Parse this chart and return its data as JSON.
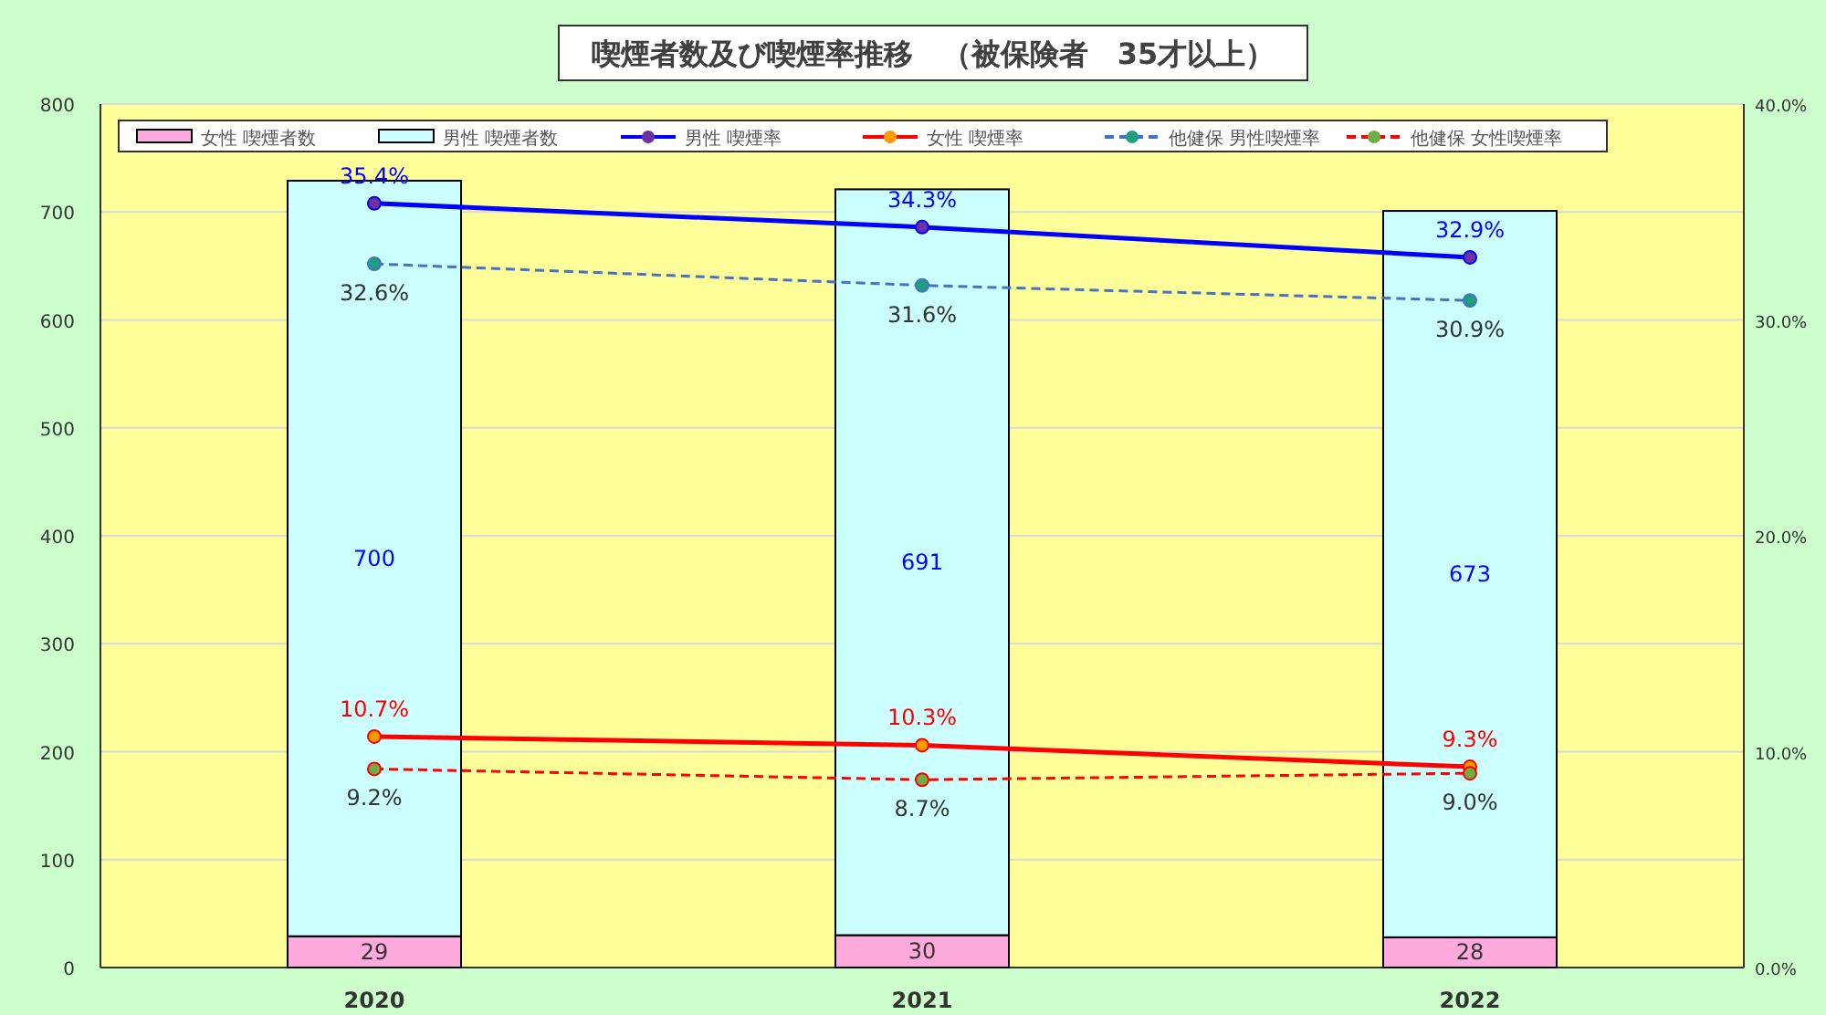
{
  "chart_data": {
    "type": "bar",
    "title": "喫煙者数及び喫煙率推移　（被保険者　35才以上）",
    "categories": [
      "2020",
      "2021",
      "2022"
    ],
    "stacked": true,
    "ylim": [
      0,
      800
    ],
    "yticks": [
      0,
      100,
      200,
      300,
      400,
      500,
      600,
      700,
      800
    ],
    "y2lim": [
      0,
      40
    ],
    "y2ticks": [
      {
        "value": 0,
        "label": "0.0%"
      },
      {
        "value": 10,
        "label": "10.0%"
      },
      {
        "value": 20,
        "label": "20.0%"
      },
      {
        "value": 30,
        "label": "30.0%"
      },
      {
        "value": 40,
        "label": "40.0%"
      }
    ],
    "grid": "y",
    "legend": "top",
    "series": [
      {
        "name": "女性 喫煙者数",
        "color": "#ffaadd",
        "values": [
          29,
          30,
          28
        ],
        "value_labels": [
          "29",
          "30",
          "28"
        ]
      },
      {
        "name": "男性 喫煙者数",
        "color": "#ccffff",
        "values": [
          700,
          691,
          673
        ],
        "value_labels": [
          "700",
          "691",
          "673"
        ]
      },
      {
        "name": "男性 喫煙率",
        "type": "line",
        "axis": "y2",
        "color": "#0000ff",
        "colors": [
          "#7030a0",
          "#7030a0",
          "#7030a0"
        ],
        "marker": "circle",
        "line_style": "solid",
        "values": [
          35.4,
          34.3,
          32.9
        ],
        "value_labels": [
          "35.4%",
          "34.3%",
          "32.9%"
        ]
      },
      {
        "name": "女性 喫煙率",
        "type": "line",
        "axis": "y2",
        "color": "#ff0000",
        "colors": [
          "#ff9900",
          "#ff9900",
          "#ff9900"
        ],
        "marker": "circle",
        "line_style": "solid",
        "values": [
          10.7,
          10.3,
          9.3
        ],
        "value_labels": [
          "10.7%",
          "10.3%",
          "9.3%"
        ]
      },
      {
        "name": "他健保 男性喫煙率",
        "type": "line",
        "axis": "y2",
        "color": "#4472c4",
        "colors": [
          "#1f9f7f",
          "#1f9f7f",
          "#1f9f7f"
        ],
        "marker": "circle",
        "line_style": "dashed",
        "values": [
          32.6,
          31.6,
          30.9
        ],
        "value_labels": [
          "32.6%",
          "31.6%",
          "30.9%"
        ]
      },
      {
        "name": "他健保 女性喫煙率",
        "type": "line",
        "axis": "y2",
        "color": "#ff0000",
        "colors": [
          "#70ad47",
          "#70ad47",
          "#70ad47"
        ],
        "marker": "circle",
        "line_style": "dashed",
        "values": [
          9.2,
          8.7,
          9.0
        ],
        "value_labels": [
          "9.2%",
          "8.7%",
          "9.0%"
        ]
      }
    ]
  }
}
